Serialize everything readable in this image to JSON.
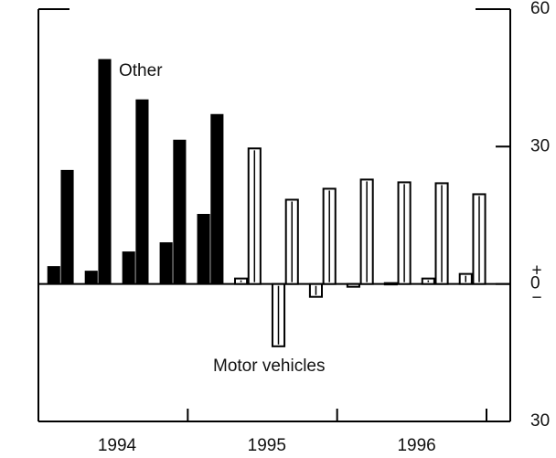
{
  "chart_data": {
    "type": "bar",
    "categories": [
      null,
      "1994",
      null,
      null,
      null,
      "1995",
      null,
      null,
      null,
      "1996",
      null,
      null
    ],
    "series": [
      {
        "name": "Motor vehicles",
        "values": [
          3.8,
          2.8,
          7,
          9,
          15.2,
          1.2,
          -13.6,
          -2.8,
          -0.6,
          0.2,
          1.2,
          2.2
        ],
        "colors": [
          "#000000",
          "#000000",
          "#000000",
          "#000000",
          "#000000",
          "#ffffff",
          "#ffffff",
          "#ffffff",
          "#ffffff",
          "#ffffff",
          "#ffffff",
          "#ffffff"
        ]
      },
      {
        "name": "Other",
        "values": [
          24.8,
          49,
          40.2,
          31.4,
          37,
          29.6,
          18.4,
          20.8,
          22.8,
          22.2,
          22,
          19.6
        ],
        "colors": [
          "#000000",
          "#000000",
          "#000000",
          "#000000",
          "#000000",
          "#ffffff",
          "#ffffff",
          "#ffffff",
          "#ffffff",
          "#ffffff",
          "#ffffff",
          "#ffffff"
        ]
      }
    ],
    "ylim": [
      -30,
      60
    ],
    "yticks": [
      60,
      30,
      0,
      {
        "value": -30,
        "label": "30"
      }
    ],
    "plus_sign": "+",
    "minus_sign": "−"
  }
}
